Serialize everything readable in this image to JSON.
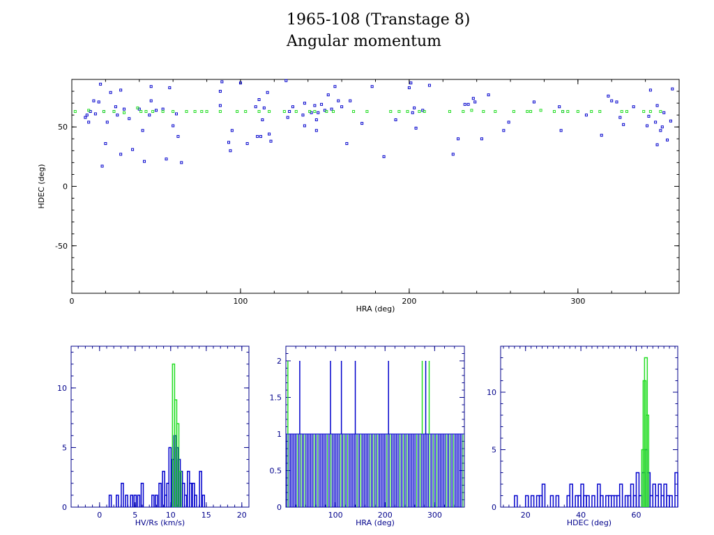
{
  "header": {
    "title": "1965-108 (Transtage 8)",
    "subtitle": "Angular momentum"
  },
  "colors": {
    "series_a": "#0000cc",
    "series_b": "#22dd22",
    "axis_top": "#000000",
    "axis_hist": "#00008b"
  },
  "chart_data": [
    {
      "type": "scatter",
      "title": "",
      "xlabel": "HRA (deg)",
      "ylabel": "HDEC (deg)",
      "xlim": [
        0,
        360
      ],
      "ylim": [
        -90,
        90
      ],
      "xticks": [
        0,
        100,
        200,
        300
      ],
      "yticks": [
        -50,
        0,
        50
      ],
      "series": [
        {
          "color": "#0000cc",
          "points": [
            [
              8,
              58
            ],
            [
              9,
              60
            ],
            [
              10,
              54
            ],
            [
              11,
              63
            ],
            [
              13,
              72
            ],
            [
              14,
              61
            ],
            [
              16,
              71
            ],
            [
              17,
              86
            ],
            [
              18,
              17
            ],
            [
              19,
              63
            ],
            [
              20,
              36
            ],
            [
              21,
              54
            ],
            [
              23,
              79
            ],
            [
              25,
              63
            ],
            [
              26,
              67
            ],
            [
              27,
              60
            ],
            [
              29,
              27
            ],
            [
              29,
              81
            ],
            [
              31,
              65
            ],
            [
              34,
              57
            ],
            [
              36,
              31
            ],
            [
              40,
              65
            ],
            [
              42,
              47
            ],
            [
              43,
              21
            ],
            [
              46,
              60
            ],
            [
              47,
              72
            ],
            [
              47,
              84
            ],
            [
              50,
              64
            ],
            [
              54,
              65
            ],
            [
              56,
              23
            ],
            [
              58,
              83
            ],
            [
              60,
              51
            ],
            [
              62,
              61
            ],
            [
              63,
              42
            ],
            [
              65,
              20
            ],
            [
              88,
              68
            ],
            [
              88,
              80
            ],
            [
              89,
              88
            ],
            [
              93,
              37
            ],
            [
              94,
              30
            ],
            [
              95,
              47
            ],
            [
              100,
              87
            ],
            [
              104,
              36
            ],
            [
              109,
              67
            ],
            [
              110,
              42
            ],
            [
              111,
              73
            ],
            [
              112,
              42
            ],
            [
              113,
              56
            ],
            [
              114,
              66
            ],
            [
              116,
              79
            ],
            [
              117,
              44
            ],
            [
              118,
              38
            ],
            [
              127,
              89
            ],
            [
              128,
              58
            ],
            [
              129,
              63
            ],
            [
              131,
              67
            ],
            [
              137,
              60
            ],
            [
              138,
              51
            ],
            [
              138,
              70
            ],
            [
              142,
              62
            ],
            [
              144,
              68
            ],
            [
              145,
              56
            ],
            [
              145,
              47
            ],
            [
              146,
              62
            ],
            [
              148,
              69
            ],
            [
              150,
              64
            ],
            [
              152,
              77
            ],
            [
              154,
              65
            ],
            [
              156,
              84
            ],
            [
              158,
              72
            ],
            [
              160,
              67
            ],
            [
              163,
              36
            ],
            [
              165,
              72
            ],
            [
              172,
              53
            ],
            [
              178,
              84
            ],
            [
              185,
              25
            ],
            [
              192,
              56
            ],
            [
              200,
              83
            ],
            [
              201,
              87
            ],
            [
              202,
              62
            ],
            [
              203,
              66
            ],
            [
              204,
              49
            ],
            [
              208,
              64
            ],
            [
              212,
              85
            ],
            [
              226,
              27
            ],
            [
              229,
              40
            ],
            [
              233,
              69
            ],
            [
              235,
              69
            ],
            [
              238,
              74
            ],
            [
              239,
              71
            ],
            [
              243,
              40
            ],
            [
              247,
              77
            ],
            [
              256,
              47
            ],
            [
              259,
              54
            ],
            [
              274,
              71
            ],
            [
              289,
              67
            ],
            [
              290,
              47
            ],
            [
              291,
              63
            ],
            [
              305,
              60
            ],
            [
              314,
              43
            ],
            [
              318,
              76
            ],
            [
              320,
              72
            ],
            [
              323,
              71
            ],
            [
              325,
              58
            ],
            [
              327,
              52
            ],
            [
              333,
              67
            ],
            [
              341,
              51
            ],
            [
              342,
              59
            ],
            [
              343,
              81
            ],
            [
              346,
              54
            ],
            [
              347,
              68
            ],
            [
              347,
              35
            ],
            [
              349,
              47
            ],
            [
              350,
              50
            ],
            [
              351,
              62
            ],
            [
              353,
              39
            ],
            [
              355,
              55
            ],
            [
              356,
              82
            ]
          ]
        },
        {
          "color": "#22dd22",
          "points": [
            [
              2,
              63
            ],
            [
              10,
              64
            ],
            [
              19,
              63
            ],
            [
              25,
              63
            ],
            [
              31,
              62
            ],
            [
              39,
              66
            ],
            [
              41,
              63
            ],
            [
              44,
              63
            ],
            [
              48,
              63
            ],
            [
              54,
              63
            ],
            [
              60,
              63
            ],
            [
              68,
              63
            ],
            [
              73,
              63
            ],
            [
              77,
              63
            ],
            [
              80,
              63
            ],
            [
              88,
              63
            ],
            [
              98,
              63
            ],
            [
              103,
              63
            ],
            [
              111,
              63
            ],
            [
              117,
              63
            ],
            [
              126,
              63
            ],
            [
              133,
              63
            ],
            [
              141,
              63
            ],
            [
              144,
              63
            ],
            [
              151,
              63
            ],
            [
              155,
              63
            ],
            [
              167,
              63
            ],
            [
              175,
              63
            ],
            [
              189,
              63
            ],
            [
              194,
              63
            ],
            [
              199,
              63
            ],
            [
              206,
              63
            ],
            [
              209,
              63
            ],
            [
              224,
              63
            ],
            [
              232,
              63
            ],
            [
              237,
              64
            ],
            [
              244,
              63
            ],
            [
              251,
              63
            ],
            [
              262,
              63
            ],
            [
              270,
              63
            ],
            [
              272,
              63
            ],
            [
              278,
              64
            ],
            [
              286,
              63
            ],
            [
              291,
              63
            ],
            [
              294,
              63
            ],
            [
              300,
              63
            ],
            [
              308,
              63
            ],
            [
              313,
              63
            ],
            [
              326,
              63
            ],
            [
              329,
              63
            ],
            [
              339,
              63
            ],
            [
              343,
              63
            ],
            [
              349,
              63
            ]
          ]
        }
      ]
    },
    {
      "type": "histogram",
      "title": "",
      "xlabel": "HV/Rs (km/s)",
      "ylabel": "",
      "xlim": [
        -4,
        21
      ],
      "ylim": [
        0,
        13.5
      ],
      "xticks": [
        0,
        5,
        10,
        15,
        20
      ],
      "yticks": [
        0,
        5,
        10
      ],
      "series": [
        {
          "color": "#0000cc",
          "bins": [
            [
              1.5,
              1
            ],
            [
              2.5,
              1
            ],
            [
              3.2,
              2
            ],
            [
              3.8,
              1
            ],
            [
              4.5,
              1
            ],
            [
              5.0,
              1
            ],
            [
              5.5,
              1
            ],
            [
              6.0,
              2
            ],
            [
              7.5,
              1
            ],
            [
              8.0,
              1
            ],
            [
              8.5,
              2
            ],
            [
              9.0,
              3
            ],
            [
              9.3,
              1
            ],
            [
              9.6,
              2
            ],
            [
              9.9,
              5
            ],
            [
              10.3,
              4
            ],
            [
              10.6,
              6
            ],
            [
              10.9,
              5
            ],
            [
              11.2,
              4
            ],
            [
              11.5,
              3
            ],
            [
              11.8,
              2
            ],
            [
              12.1,
              1
            ],
            [
              12.5,
              3
            ],
            [
              12.8,
              2
            ],
            [
              13.2,
              2
            ],
            [
              13.5,
              1
            ],
            [
              14.2,
              3
            ],
            [
              14.6,
              1
            ]
          ]
        },
        {
          "color": "#22dd22",
          "bins": [
            [
              10.4,
              12
            ],
            [
              10.7,
              9
            ],
            [
              11.0,
              7
            ],
            [
              11.3,
              3
            ]
          ]
        }
      ]
    },
    {
      "type": "histogram",
      "title": "",
      "xlabel": "HRA (deg)",
      "ylabel": "",
      "xlim": [
        0,
        360
      ],
      "ylim": [
        0,
        2.2
      ],
      "xticks": [
        100,
        200,
        300
      ],
      "yticks": [
        0,
        0.5,
        1,
        1.5,
        2
      ],
      "series": [
        {
          "color": "#0000cc",
          "spikes2": [
            28,
            90,
            112,
            140,
            207,
            282
          ]
        },
        {
          "color": "#22dd22",
          "spikes2": [
            4,
            275,
            289
          ]
        }
      ]
    },
    {
      "type": "histogram",
      "title": "",
      "xlabel": "HDEC (deg)",
      "ylabel": "",
      "xlim": [
        11,
        75
      ],
      "ylim": [
        0,
        14
      ],
      "xticks": [
        20,
        40,
        60
      ],
      "yticks": [
        0,
        5,
        10
      ],
      "series": [
        {
          "color": "#0000cc",
          "bins": [
            [
              16.5,
              1
            ],
            [
              20.5,
              1
            ],
            [
              22.5,
              1
            ],
            [
              24.5,
              1
            ],
            [
              25.5,
              1
            ],
            [
              26.5,
              2
            ],
            [
              29.5,
              1
            ],
            [
              31.5,
              1
            ],
            [
              35.5,
              1
            ],
            [
              36.5,
              2
            ],
            [
              38.5,
              1
            ],
            [
              39.5,
              1
            ],
            [
              40.5,
              2
            ],
            [
              41.5,
              1
            ],
            [
              42.5,
              1
            ],
            [
              44.5,
              1
            ],
            [
              46.5,
              2
            ],
            [
              47.5,
              1
            ],
            [
              49.5,
              1
            ],
            [
              50.5,
              1
            ],
            [
              51.5,
              1
            ],
            [
              52.5,
              1
            ],
            [
              53.5,
              1
            ],
            [
              54.5,
              2
            ],
            [
              56.5,
              1
            ],
            [
              57.5,
              1
            ],
            [
              58.5,
              2
            ],
            [
              59.5,
              1
            ],
            [
              60.5,
              3
            ],
            [
              61.5,
              1
            ],
            [
              62.5,
              3
            ],
            [
              63.5,
              5
            ],
            [
              64.5,
              3
            ],
            [
              65.5,
              1
            ],
            [
              66.5,
              2
            ],
            [
              67.5,
              1
            ],
            [
              68.5,
              2
            ],
            [
              69.5,
              1
            ],
            [
              70.5,
              2
            ],
            [
              71.5,
              1
            ],
            [
              72.5,
              1
            ],
            [
              74.5,
              3
            ]
          ]
        },
        {
          "color": "#22dd22",
          "bins": [
            [
              62.5,
              5
            ],
            [
              63.0,
              11
            ],
            [
              63.5,
              13
            ],
            [
              64.0,
              8
            ]
          ]
        }
      ]
    }
  ]
}
